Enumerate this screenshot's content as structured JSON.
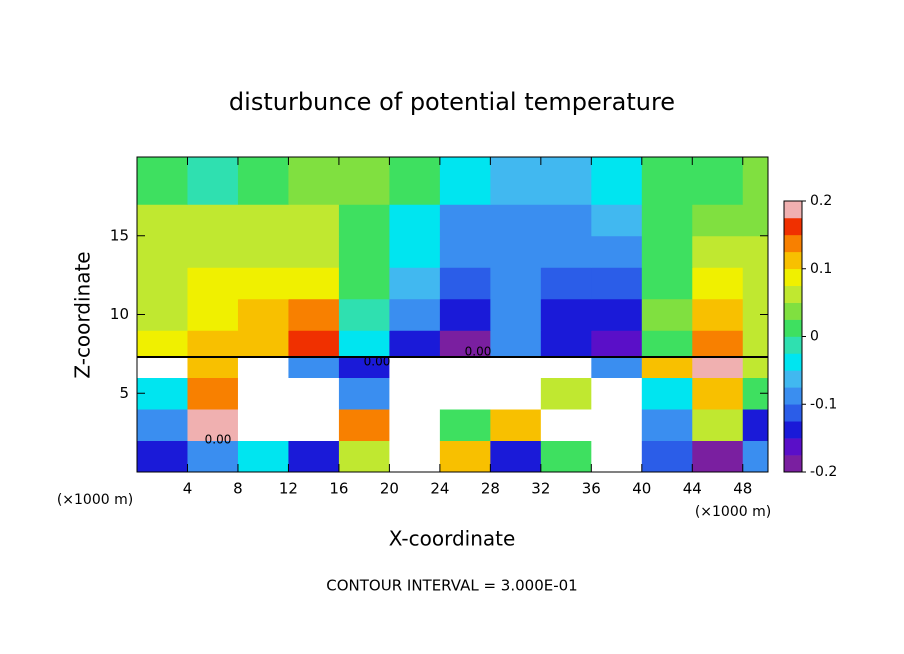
{
  "chart_data": {
    "type": "contour",
    "title": "disturbunce of potential temperature",
    "x_label": "X-coordinate",
    "y_label": "Z-coordinate",
    "x_unit_labels": [
      "(×1000 m)",
      "(×1000 m)"
    ],
    "footer": "CONTOUR INTERVAL = 3.000E-01",
    "contour_labels": [
      "0.00",
      "0.00",
      "0.00"
    ],
    "xlim": [
      0,
      50
    ],
    "ylim": [
      0,
      20
    ],
    "xticks": [
      4,
      8,
      12,
      16,
      20,
      24,
      28,
      32,
      36,
      40,
      44,
      48
    ],
    "yticks": [
      5,
      10,
      15
    ],
    "x_edges": [
      0,
      4,
      8,
      12,
      16,
      20,
      24,
      28,
      32,
      36,
      40,
      44,
      48,
      50
    ],
    "y_edges": [
      0,
      2,
      4,
      6,
      7.3,
      9,
      11,
      13,
      15,
      17,
      20
    ],
    "z": [
      [
        -0.15,
        -0.1,
        -0.05,
        -0.15,
        0.05,
        0.3,
        0.1,
        -0.15,
        0.0,
        0.3,
        -0.12,
        -0.18,
        -0.1
      ],
      [
        -0.1,
        0.2,
        0.3,
        0.3,
        0.15,
        0.3,
        0.0,
        0.1,
        0.3,
        0.3,
        -0.1,
        0.05,
        -0.15
      ],
      [
        -0.05,
        0.15,
        0.3,
        0.3,
        -0.1,
        0.3,
        0.3,
        0.3,
        0.05,
        0.3,
        -0.05,
        0.1,
        0.0
      ],
      [
        0.25,
        0.1,
        0.3,
        -0.1,
        -0.15,
        0.3,
        0.3,
        0.3,
        0.3,
        -0.1,
        0.1,
        0.2,
        0.05
      ],
      [
        0.08,
        0.1,
        0.1,
        0.16,
        -0.05,
        -0.14,
        -0.19,
        -0.1,
        -0.15,
        -0.16,
        0.02,
        0.14,
        0.06
      ],
      [
        0.07,
        0.09,
        0.1,
        0.13,
        -0.02,
        -0.1,
        -0.15,
        -0.1,
        -0.13,
        -0.14,
        0.03,
        0.12,
        0.06
      ],
      [
        0.06,
        0.08,
        0.09,
        0.09,
        0,
        -0.07,
        -0.12,
        -0.1,
        -0.12,
        -0.12,
        0.02,
        0.08,
        0.07
      ],
      [
        0.06,
        0.07,
        0.07,
        0.06,
        0.01,
        -0.05,
        -0.1,
        -0.09,
        -0.1,
        -0.09,
        0.02,
        0.05,
        0.06
      ],
      [
        0.05,
        0.06,
        0.06,
        0.05,
        0.02,
        -0.03,
        -0.08,
        -0.08,
        -0.08,
        -0.06,
        0,
        0.03,
        0.04
      ],
      [
        0.02,
        -0.01,
        0.01,
        0.03,
        0.03,
        0,
        -0.05,
        -0.07,
        -0.07,
        -0.04,
        0.01,
        0.02,
        0.03
      ]
    ],
    "clim": [
      -0.2,
      0.2
    ],
    "cticks": [
      -0.2,
      -0.1,
      0,
      0.1,
      0.2
    ],
    "colors": [
      "#7a1fa0",
      "#5a0fc8",
      "#1a1ad8",
      "#2b5de8",
      "#3a8ef0",
      "#41b8f0",
      "#00e5f0",
      "#2fe0b0",
      "#3ee060",
      "#80e040",
      "#c0e830",
      "#f0f000",
      "#f8c000",
      "#f88000",
      "#f03000",
      "#f0b0b0"
    ]
  }
}
